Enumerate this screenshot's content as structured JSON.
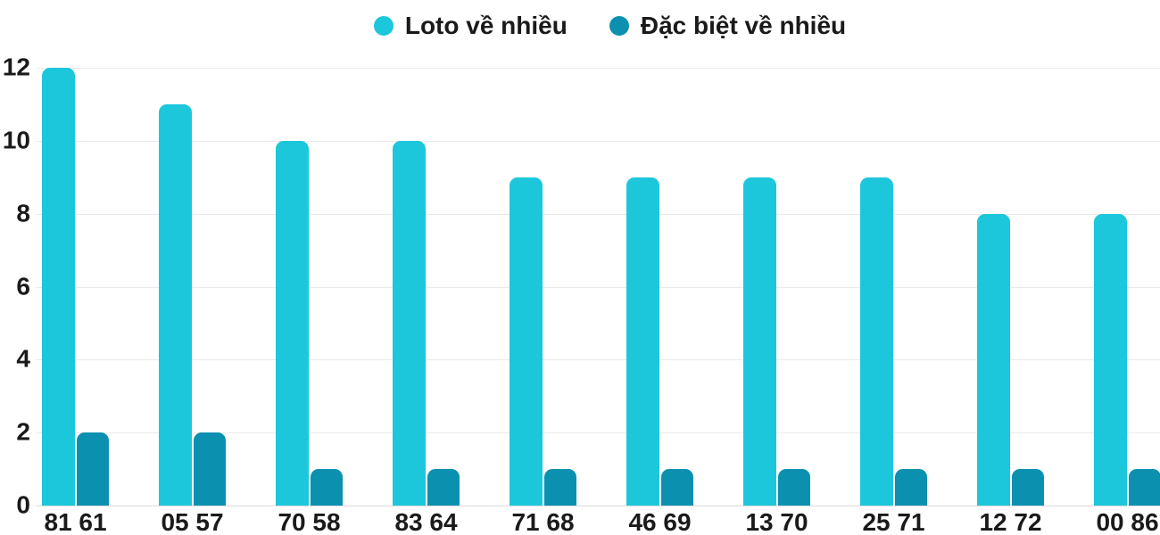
{
  "legend": {
    "items": [
      {
        "label": "Loto về nhiều",
        "color": "#1cc7db"
      },
      {
        "label": "Đặc biệt về nhiều",
        "color": "#0b90b0"
      }
    ]
  },
  "chart_data": {
    "type": "bar",
    "title": "",
    "xlabel": "",
    "ylabel": "",
    "categories": [
      "81 61",
      "05 57",
      "70 58",
      "83 64",
      "71 68",
      "46 69",
      "13 70",
      "25 71",
      "12 72",
      "00 86"
    ],
    "series": [
      {
        "name": "Loto về nhiều",
        "color": "#1cc7db",
        "values": [
          12,
          11,
          10,
          10,
          9,
          9,
          9,
          9,
          8,
          8
        ]
      },
      {
        "name": "Đặc biệt về nhiều",
        "color": "#0b90b0",
        "values": [
          2,
          2,
          1,
          1,
          1,
          1,
          1,
          1,
          1,
          1
        ]
      }
    ],
    "ylim": [
      0,
      12
    ],
    "yticks": [
      0,
      2,
      4,
      6,
      8,
      10,
      12
    ],
    "grid": true,
    "legend_position": "top",
    "colors": {
      "gridline": "#eaeaea",
      "axis_line": "#dcdcdc",
      "text": "#1a1a1a",
      "background": "#ffffff"
    }
  }
}
